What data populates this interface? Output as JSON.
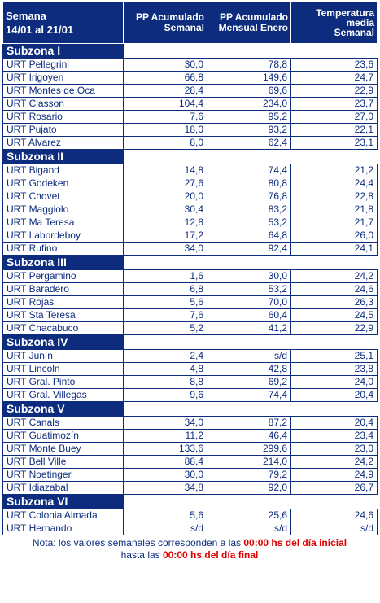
{
  "header": {
    "week_label": "Semana",
    "week_range": "14/01 al 21/01",
    "col_weekly_line1": "PP Acumulado",
    "col_weekly_line2": "Semanal",
    "col_monthly_line1": "PP Acumulado",
    "col_monthly_line2": "Mensual Enero",
    "col_temp_line1": "Temperatura",
    "col_temp_line2": "media",
    "col_temp_line3": "Semanal"
  },
  "zones": [
    {
      "name": "Subzona I",
      "rows": [
        {
          "station": "URT Pellegrini",
          "pp_week": "30,0",
          "pp_month": "78,8",
          "temp": "23,6"
        },
        {
          "station": "URT Irigoyen",
          "pp_week": "66,8",
          "pp_month": "149,6",
          "temp": "24,7"
        },
        {
          "station": "URT Montes de Oca",
          "pp_week": "28,4",
          "pp_month": "69,6",
          "temp": "22,9"
        },
        {
          "station": "URT Classon",
          "pp_week": "104,4",
          "pp_month": "234,0",
          "temp": "23,7"
        },
        {
          "station": "URT Rosario",
          "pp_week": "7,6",
          "pp_month": "95,2",
          "temp": "27,0"
        },
        {
          "station": "URT Pujato",
          "pp_week": "18,0",
          "pp_month": "93,2",
          "temp": "22,1"
        },
        {
          "station": "URT Alvarez",
          "pp_week": "8,0",
          "pp_month": "62,4",
          "temp": "23,1"
        }
      ]
    },
    {
      "name": "Subzona II",
      "rows": [
        {
          "station": "URT Bigand",
          "pp_week": "14,8",
          "pp_month": "74,4",
          "temp": "21,2"
        },
        {
          "station": "URT Godeken",
          "pp_week": "27,6",
          "pp_month": "80,8",
          "temp": "24,4"
        },
        {
          "station": "URT Chovet",
          "pp_week": "20,0",
          "pp_month": "76,8",
          "temp": "22,8"
        },
        {
          "station": "URT Maggiolo",
          "pp_week": "30,4",
          "pp_month": "83,2",
          "temp": "21,8"
        },
        {
          "station": "URT Ma Teresa",
          "pp_week": "12,8",
          "pp_month": "53,2",
          "temp": "21,7"
        },
        {
          "station": "URT Labordeboy",
          "pp_week": "17,2",
          "pp_month": "64,8",
          "temp": "26,0"
        },
        {
          "station": "URT Rufino",
          "pp_week": "34,0",
          "pp_month": "92,4",
          "temp": "24,1"
        }
      ]
    },
    {
      "name": "Subzona III",
      "rows": [
        {
          "station": "URT Pergamino",
          "pp_week": "1,6",
          "pp_month": "30,0",
          "temp": "24,2"
        },
        {
          "station": "URT Baradero",
          "pp_week": "6,8",
          "pp_month": "53,2",
          "temp": "24,6"
        },
        {
          "station": "URT Rojas",
          "pp_week": "5,6",
          "pp_month": "70,0",
          "temp": "26,3"
        },
        {
          "station": "URT Sta Teresa",
          "pp_week": "7,6",
          "pp_month": "60,4",
          "temp": "24,5"
        },
        {
          "station": "URT Chacabuco",
          "pp_week": "5,2",
          "pp_month": "41,2",
          "temp": "22,9"
        }
      ]
    },
    {
      "name": "Subzona IV",
      "rows": [
        {
          "station": "URT Junín",
          "pp_week": "2,4",
          "pp_month": "s/d",
          "temp": "25,1"
        },
        {
          "station": "URT Lincoln",
          "pp_week": "4,8",
          "pp_month": "42,8",
          "temp": "23,8"
        },
        {
          "station": "URT Gral. Pinto",
          "pp_week": "8,8",
          "pp_month": "69,2",
          "temp": "24,0"
        },
        {
          "station": "URT Gral. Villegas",
          "pp_week": "9,6",
          "pp_month": "74,4",
          "temp": "20,4"
        }
      ]
    },
    {
      "name": "Subzona V",
      "rows": [
        {
          "station": "URT Canals",
          "pp_week": "34,0",
          "pp_month": "87,2",
          "temp": "20,4"
        },
        {
          "station": "URT Guatimozín",
          "pp_week": "11,2",
          "pp_month": "46,4",
          "temp": "23,4"
        },
        {
          "station": "URT Monte Buey",
          "pp_week": "133,6",
          "pp_month": "299,6",
          "temp": "23,0"
        },
        {
          "station": "URT Bell Ville",
          "pp_week": "88,4",
          "pp_month": "214,0",
          "temp": "24,2"
        },
        {
          "station": "URT Noetinger",
          "pp_week": "30,0",
          "pp_month": "79,2",
          "temp": "24,9"
        },
        {
          "station": "URT Idiazabal",
          "pp_week": "34,8",
          "pp_month": "92,0",
          "temp": "26,7"
        }
      ]
    },
    {
      "name": "Subzona VI",
      "rows": [
        {
          "station": "URT Colonia Almada",
          "pp_week": "5,6",
          "pp_month": "25,6",
          "temp": "24,6"
        },
        {
          "station": "URT Hernando",
          "pp_week": "s/d",
          "pp_month": "s/d",
          "temp": "s/d"
        }
      ]
    }
  ],
  "note": {
    "part1": "Nota: los valores semanales corresponden a las ",
    "highlight1": "00:00 hs del día inicial",
    "part2": "hasta las ",
    "highlight2": "00:00 hs del día final"
  },
  "colors": {
    "header_bg": "#0d2c7e",
    "text": "#0d2c7e",
    "highlight": "#e00000"
  }
}
